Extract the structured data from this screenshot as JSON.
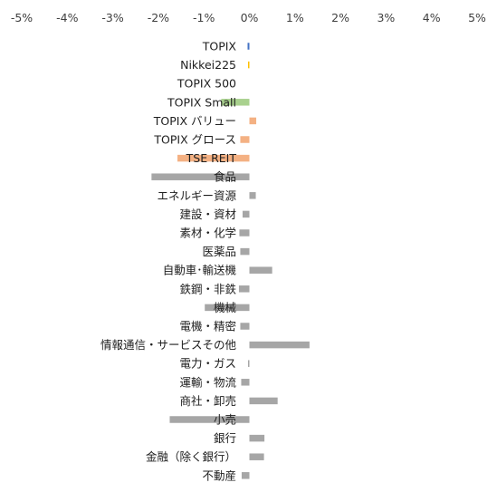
{
  "chart_data": {
    "type": "bar",
    "orientation": "horizontal",
    "title": "",
    "xlabel": "",
    "ylabel": "",
    "xlim": [
      -5,
      5
    ],
    "x_ticks": [
      "-5%",
      "-4%",
      "-3%",
      "-2%",
      "-1%",
      "0%",
      "1%",
      "2%",
      "3%",
      "4%",
      "5%"
    ],
    "x_axis_position": "top",
    "grid": false,
    "legend": "none",
    "colors": {
      "topix": "#4472C4",
      "nikkei": "#FFC000",
      "small": "#A9D18E",
      "style": "#F4B183",
      "sector": "#A6A6A6"
    },
    "categories": [
      "TOPIX",
      "Nikkei225",
      "TOPIX 500",
      "TOPIX Small",
      "TOPIX バリュー",
      "TOPIX グロース",
      "TSE REIT",
      "食品",
      "エネルギー資源",
      "建設・資材",
      "素材・化学",
      "医薬品",
      "自動車･輸送機",
      "鉄鋼・非鉄",
      "機械",
      "電機・精密",
      "情報通信・サービスその他",
      "電力・ガス",
      "運輸・物流",
      "商社・卸売",
      "小売",
      "銀行",
      "金融（除く銀行）",
      "不動産"
    ],
    "values": [
      -0.04,
      -0.02,
      0.0,
      -0.62,
      0.15,
      -0.2,
      -1.58,
      -2.15,
      0.14,
      -0.15,
      -0.22,
      -0.2,
      0.5,
      -0.23,
      -0.98,
      -0.2,
      1.32,
      -0.01,
      -0.18,
      0.62,
      -1.75,
      0.33,
      0.32,
      -0.17
    ],
    "color_keys": [
      "topix",
      "nikkei",
      "topix",
      "small",
      "style",
      "style",
      "style",
      "sector",
      "sector",
      "sector",
      "sector",
      "sector",
      "sector",
      "sector",
      "sector",
      "sector",
      "sector",
      "sector",
      "sector",
      "sector",
      "sector",
      "sector",
      "sector",
      "sector"
    ]
  }
}
